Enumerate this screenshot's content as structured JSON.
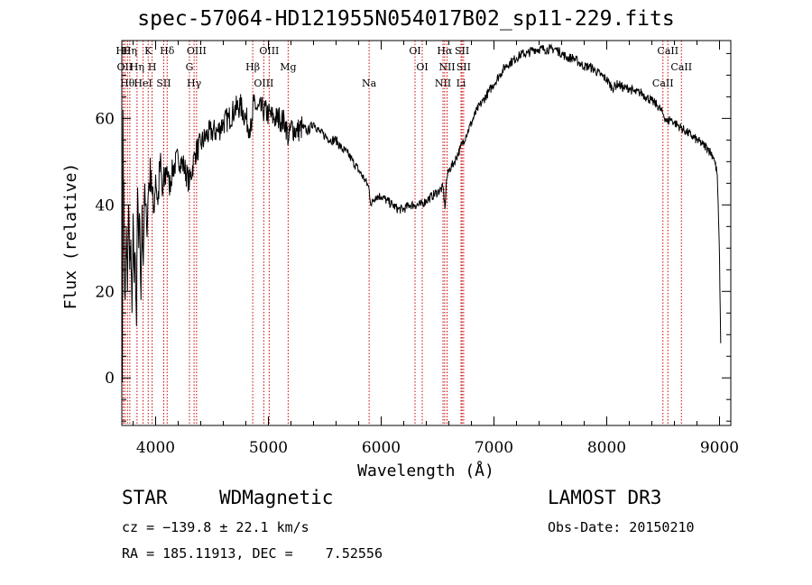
{
  "header": {
    "title": "spec-57064-HD121955N054017B02_sp11-229.fits"
  },
  "info": {
    "obj_class": "STAR",
    "subclass": "WDMagnetic",
    "survey": "LAMOST DR3",
    "cz": "cz = −139.8 ± 22.1 km/s",
    "obs_date": "Obs-Date: 20150210",
    "coords": "RA = 185.11913, DEC =    7.52556"
  },
  "colors": {
    "line": "#000000",
    "marker": "#cc0000"
  },
  "chart_data": {
    "type": "line",
    "xlabel": "Wavelength (Å)",
    "ylabel": "Flux (relative)",
    "xlim": [
      3700,
      9100
    ],
    "ylim": [
      -11,
      78
    ],
    "xticks": [
      4000,
      5000,
      6000,
      7000,
      8000,
      9000
    ],
    "yticks": [
      0,
      20,
      40,
      60
    ],
    "grid": false,
    "series": [
      {
        "name": "flux",
        "x": [
          3700,
          3705,
          3710,
          3720,
          3730,
          3740,
          3750,
          3760,
          3770,
          3780,
          3790,
          3800,
          3810,
          3820,
          3830,
          3840,
          3850,
          3860,
          3870,
          3880,
          3890,
          3900,
          3920,
          3940,
          3960,
          3980,
          4000,
          4020,
          4040,
          4060,
          4080,
          4100,
          4120,
          4150,
          4200,
          4250,
          4300,
          4350,
          4400,
          4450,
          4500,
          4550,
          4600,
          4650,
          4700,
          4750,
          4800,
          4850,
          4870,
          4900,
          4950,
          5000,
          5050,
          5100,
          5150,
          5180,
          5200,
          5250,
          5300,
          5350,
          5400,
          5450,
          5500,
          5550,
          5600,
          5650,
          5700,
          5750,
          5800,
          5850,
          5890,
          5910,
          5950,
          6000,
          6050,
          6100,
          6150,
          6200,
          6250,
          6300,
          6350,
          6400,
          6450,
          6500,
          6550,
          6565,
          6580,
          6600,
          6650,
          6700,
          6750,
          6800,
          6850,
          6900,
          6950,
          7000,
          7050,
          7100,
          7150,
          7200,
          7250,
          7300,
          7350,
          7400,
          7450,
          7500,
          7550,
          7600,
          7650,
          7700,
          7750,
          7800,
          7850,
          7900,
          7950,
          8000,
          8050,
          8100,
          8150,
          8200,
          8250,
          8300,
          8350,
          8400,
          8450,
          8500,
          8540,
          8560,
          8600,
          8650,
          8700,
          8750,
          8800,
          8850,
          8900,
          8950,
          8980,
          9000,
          9010
        ],
        "y": [
          8,
          -1,
          62,
          30,
          18,
          35,
          20,
          40,
          25,
          32,
          15,
          38,
          22,
          28,
          12,
          44,
          30,
          36,
          18,
          40,
          26,
          42,
          35,
          45,
          48,
          38,
          47,
          40,
          50,
          42,
          46,
          49,
          44,
          48,
          51,
          49,
          45,
          52,
          54,
          56,
          57,
          57,
          59,
          60,
          62,
          63,
          60,
          57,
          64,
          62,
          62,
          61,
          60,
          60,
          59,
          55,
          58,
          57,
          58,
          57,
          59,
          57,
          56,
          55,
          55,
          53,
          52,
          50,
          48,
          46,
          44,
          40,
          42,
          42,
          41,
          40,
          39,
          39,
          40,
          40,
          40,
          41,
          42,
          43,
          44,
          39,
          46,
          48,
          50,
          53,
          56,
          59,
          62,
          64,
          66,
          68,
          70,
          72,
          73,
          74,
          75,
          75,
          76,
          76,
          76,
          76,
          76,
          75,
          74,
          74,
          73,
          72,
          72,
          71,
          70,
          69,
          67,
          68,
          67,
          67,
          66,
          66,
          65,
          64,
          63,
          61,
          59,
          60,
          59,
          58,
          57,
          56,
          55,
          54,
          53,
          51,
          47,
          28,
          8
        ]
      }
    ],
    "markers": [
      {
        "x": 3712,
        "label": "Hθ"
      },
      {
        "x": 3727,
        "label": "OII"
      },
      {
        "x": 3750,
        "label": "Hθ"
      },
      {
        "x": 3771,
        "label": "Hη"
      },
      {
        "x": 3835,
        "label": "Hη"
      },
      {
        "x": 3889,
        "label": "HeI"
      },
      {
        "x": 3934,
        "label": "K"
      },
      {
        "x": 3969,
        "label": "H"
      },
      {
        "x": 4072,
        "label": "SII"
      },
      {
        "x": 4102,
        "label": "Hδ"
      },
      {
        "x": 4300,
        "label": "G"
      },
      {
        "x": 4341,
        "label": "Hγ"
      },
      {
        "x": 4363,
        "label": "OIII"
      },
      {
        "x": 4861,
        "label": "Hβ"
      },
      {
        "x": 4959,
        "label": "OIII"
      },
      {
        "x": 5007,
        "label": "OIII"
      },
      {
        "x": 5175,
        "label": "Mg"
      },
      {
        "x": 5893,
        "label": "Na"
      },
      {
        "x": 6300,
        "label": "OI"
      },
      {
        "x": 6364,
        "label": "OI"
      },
      {
        "x": 6548,
        "label": "NII"
      },
      {
        "x": 6563,
        "label": "Hα"
      },
      {
        "x": 6584,
        "label": "NII"
      },
      {
        "x": 6708,
        "label": "Li"
      },
      {
        "x": 6717,
        "label": "SII"
      },
      {
        "x": 6731,
        "label": "SII"
      },
      {
        "x": 8498,
        "label": "CaII"
      },
      {
        "x": 8542,
        "label": "CaII"
      },
      {
        "x": 8662,
        "label": "CaII"
      }
    ]
  }
}
